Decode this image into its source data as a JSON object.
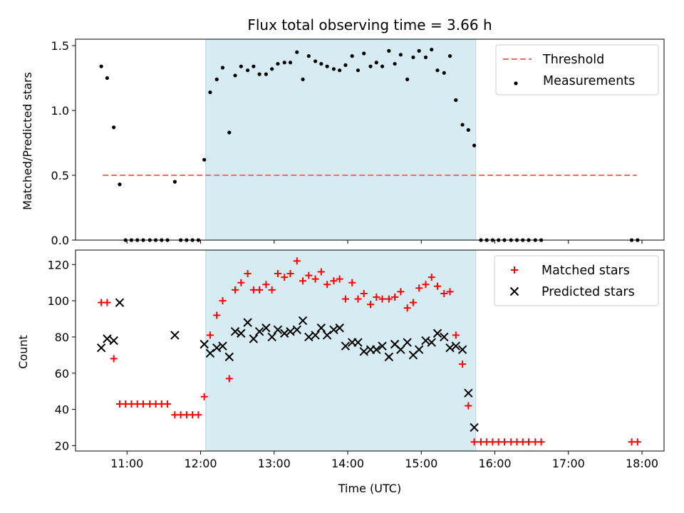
{
  "figure": {
    "title": "Flux total observing time = 3.66 h",
    "xlabel": "Time (UTC)"
  },
  "colors": {
    "span": "#add8e6",
    "threshold": "#ff6666",
    "measurements": "#000000",
    "matched": "#ff0000",
    "predicted": "#000000"
  },
  "chart_data": [
    {
      "type": "scatter",
      "name": "ratio-panel",
      "ylabel": "Matched/Predicted stars",
      "xlim": [
        10.3,
        18.3
      ],
      "ylim": [
        0,
        1.55
      ],
      "x_ticks": [
        11,
        12,
        13,
        14,
        15,
        16,
        17,
        18
      ],
      "x_tick_labels": [],
      "y_ticks": [
        0.0,
        0.5,
        1.0,
        1.5
      ],
      "y_tick_labels": [
        "0.0",
        "0.5",
        "1.0",
        "1.5"
      ],
      "shaded_span": [
        12.07,
        15.74
      ],
      "threshold": {
        "name": "Threshold",
        "y": 0.5,
        "x_range": [
          10.67,
          17.93
        ]
      },
      "legend": {
        "position": "upper right",
        "entries": [
          "Threshold",
          "Measurements"
        ]
      },
      "series": [
        {
          "name": "Measurements",
          "marker": "dot",
          "points": [
            [
              10.65,
              1.34
            ],
            [
              10.73,
              1.25
            ],
            [
              10.82,
              0.87
            ],
            [
              10.9,
              0.43
            ],
            [
              10.98,
              0
            ],
            [
              11.06,
              0
            ],
            [
              11.14,
              0
            ],
            [
              11.22,
              0
            ],
            [
              11.31,
              0
            ],
            [
              11.39,
              0
            ],
            [
              11.47,
              0
            ],
            [
              11.55,
              0
            ],
            [
              11.65,
              0.45
            ],
            [
              11.73,
              0
            ],
            [
              11.81,
              0
            ],
            [
              11.89,
              0
            ],
            [
              11.97,
              0
            ],
            [
              12.05,
              0.62
            ],
            [
              12.13,
              1.14
            ],
            [
              12.22,
              1.24
            ],
            [
              12.3,
              1.33
            ],
            [
              12.39,
              0.83
            ],
            [
              12.47,
              1.27
            ],
            [
              12.55,
              1.34
            ],
            [
              12.64,
              1.31
            ],
            [
              12.72,
              1.34
            ],
            [
              12.8,
              1.28
            ],
            [
              12.89,
              1.28
            ],
            [
              12.97,
              1.32
            ],
            [
              13.05,
              1.36
            ],
            [
              13.14,
              1.37
            ],
            [
              13.22,
              1.37
            ],
            [
              13.31,
              1.45
            ],
            [
              13.39,
              1.24
            ],
            [
              13.47,
              1.42
            ],
            [
              13.56,
              1.38
            ],
            [
              13.64,
              1.36
            ],
            [
              13.72,
              1.34
            ],
            [
              13.81,
              1.32
            ],
            [
              13.89,
              1.31
            ],
            [
              13.97,
              1.35
            ],
            [
              14.06,
              1.42
            ],
            [
              14.14,
              1.31
            ],
            [
              14.22,
              1.44
            ],
            [
              14.31,
              1.34
            ],
            [
              14.39,
              1.37
            ],
            [
              14.47,
              1.34
            ],
            [
              14.56,
              1.46
            ],
            [
              14.64,
              1.36
            ],
            [
              14.72,
              1.43
            ],
            [
              14.81,
              1.24
            ],
            [
              14.89,
              1.41
            ],
            [
              14.97,
              1.46
            ],
            [
              15.06,
              1.41
            ],
            [
              15.14,
              1.47
            ],
            [
              15.22,
              1.31
            ],
            [
              15.31,
              1.29
            ],
            [
              15.39,
              1.42
            ],
            [
              15.47,
              1.08
            ],
            [
              15.56,
              0.89
            ],
            [
              15.64,
              0.85
            ],
            [
              15.72,
              0.73
            ],
            [
              15.81,
              0
            ],
            [
              15.89,
              0
            ],
            [
              15.97,
              0
            ],
            [
              16.05,
              0
            ],
            [
              16.13,
              0
            ],
            [
              16.22,
              0
            ],
            [
              16.3,
              0
            ],
            [
              16.38,
              0
            ],
            [
              16.46,
              0
            ],
            [
              16.55,
              0
            ],
            [
              16.63,
              0
            ],
            [
              17.86,
              0
            ],
            [
              17.94,
              0
            ]
          ]
        }
      ]
    },
    {
      "type": "scatter",
      "name": "count-panel",
      "ylabel": "Count",
      "xlim": [
        10.3,
        18.3
      ],
      "ylim": [
        17,
        128
      ],
      "x_ticks": [
        11,
        12,
        13,
        14,
        15,
        16,
        17,
        18
      ],
      "x_tick_labels": [
        "11:00",
        "12:00",
        "13:00",
        "14:00",
        "15:00",
        "16:00",
        "17:00",
        "18:00"
      ],
      "y_ticks": [
        20,
        40,
        60,
        80,
        100,
        120
      ],
      "y_tick_labels": [
        "20",
        "40",
        "60",
        "80",
        "100",
        "120"
      ],
      "shaded_span": [
        12.07,
        15.74
      ],
      "legend": {
        "position": "upper right",
        "entries": [
          "Matched stars",
          "Predicted stars"
        ]
      },
      "series": [
        {
          "name": "Matched stars",
          "marker": "plus",
          "points": [
            [
              10.65,
              99
            ],
            [
              10.73,
              99
            ],
            [
              10.82,
              68
            ],
            [
              10.9,
              43
            ],
            [
              10.98,
              43
            ],
            [
              11.06,
              43
            ],
            [
              11.14,
              43
            ],
            [
              11.22,
              43
            ],
            [
              11.31,
              43
            ],
            [
              11.39,
              43
            ],
            [
              11.47,
              43
            ],
            [
              11.55,
              43
            ],
            [
              11.65,
              37
            ],
            [
              11.73,
              37
            ],
            [
              11.81,
              37
            ],
            [
              11.89,
              37
            ],
            [
              11.97,
              37
            ],
            [
              12.05,
              47
            ],
            [
              12.13,
              81
            ],
            [
              12.22,
              92
            ],
            [
              12.3,
              100
            ],
            [
              12.39,
              57
            ],
            [
              12.47,
              106
            ],
            [
              12.55,
              110
            ],
            [
              12.64,
              115
            ],
            [
              12.72,
              106
            ],
            [
              12.8,
              106
            ],
            [
              12.89,
              109
            ],
            [
              12.97,
              106
            ],
            [
              13.05,
              115
            ],
            [
              13.14,
              113
            ],
            [
              13.22,
              115
            ],
            [
              13.31,
              122
            ],
            [
              13.39,
              111
            ],
            [
              13.47,
              114
            ],
            [
              13.56,
              112
            ],
            [
              13.64,
              116
            ],
            [
              13.72,
              109
            ],
            [
              13.81,
              111
            ],
            [
              13.89,
              112
            ],
            [
              13.97,
              101
            ],
            [
              14.06,
              110
            ],
            [
              14.14,
              101
            ],
            [
              14.22,
              104
            ],
            [
              14.31,
              98
            ],
            [
              14.39,
              102
            ],
            [
              14.47,
              101
            ],
            [
              14.56,
              101
            ],
            [
              14.64,
              102
            ],
            [
              14.72,
              105
            ],
            [
              14.81,
              96
            ],
            [
              14.89,
              99
            ],
            [
              14.97,
              107
            ],
            [
              15.06,
              109
            ],
            [
              15.14,
              113
            ],
            [
              15.22,
              108
            ],
            [
              15.31,
              104
            ],
            [
              15.39,
              105
            ],
            [
              15.47,
              81
            ],
            [
              15.56,
              65
            ],
            [
              15.64,
              42
            ],
            [
              15.72,
              22
            ],
            [
              15.81,
              22
            ],
            [
              15.89,
              22
            ],
            [
              15.97,
              22
            ],
            [
              16.05,
              22
            ],
            [
              16.13,
              22
            ],
            [
              16.22,
              22
            ],
            [
              16.3,
              22
            ],
            [
              16.38,
              22
            ],
            [
              16.46,
              22
            ],
            [
              16.55,
              22
            ],
            [
              16.63,
              22
            ],
            [
              17.86,
              22
            ],
            [
              17.94,
              22
            ]
          ]
        },
        {
          "name": "Predicted stars",
          "marker": "cross",
          "points": [
            [
              10.65,
              74
            ],
            [
              10.73,
              79
            ],
            [
              10.82,
              78
            ],
            [
              10.9,
              99
            ],
            [
              11.65,
              81
            ],
            [
              12.05,
              76
            ],
            [
              12.13,
              71
            ],
            [
              12.22,
              74
            ],
            [
              12.3,
              75
            ],
            [
              12.39,
              69
            ],
            [
              12.47,
              83
            ],
            [
              12.55,
              82
            ],
            [
              12.64,
              88
            ],
            [
              12.72,
              79
            ],
            [
              12.8,
              83
            ],
            [
              12.89,
              85
            ],
            [
              12.97,
              80
            ],
            [
              13.05,
              84
            ],
            [
              13.14,
              82
            ],
            [
              13.22,
              83
            ],
            [
              13.31,
              84
            ],
            [
              13.39,
              89
            ],
            [
              13.47,
              80
            ],
            [
              13.56,
              81
            ],
            [
              13.64,
              85
            ],
            [
              13.72,
              81
            ],
            [
              13.81,
              84
            ],
            [
              13.89,
              85
            ],
            [
              13.97,
              75
            ],
            [
              14.06,
              77
            ],
            [
              14.14,
              77
            ],
            [
              14.22,
              72
            ],
            [
              14.31,
              73
            ],
            [
              14.39,
              73
            ],
            [
              14.47,
              75
            ],
            [
              14.56,
              69
            ],
            [
              14.64,
              76
            ],
            [
              14.72,
              73
            ],
            [
              14.81,
              77
            ],
            [
              14.89,
              70
            ],
            [
              14.97,
              73
            ],
            [
              15.06,
              78
            ],
            [
              15.14,
              77
            ],
            [
              15.22,
              82
            ],
            [
              15.31,
              80
            ],
            [
              15.39,
              74
            ],
            [
              15.47,
              75
            ],
            [
              15.56,
              73
            ],
            [
              15.64,
              49
            ],
            [
              15.72,
              30
            ]
          ]
        }
      ]
    }
  ]
}
